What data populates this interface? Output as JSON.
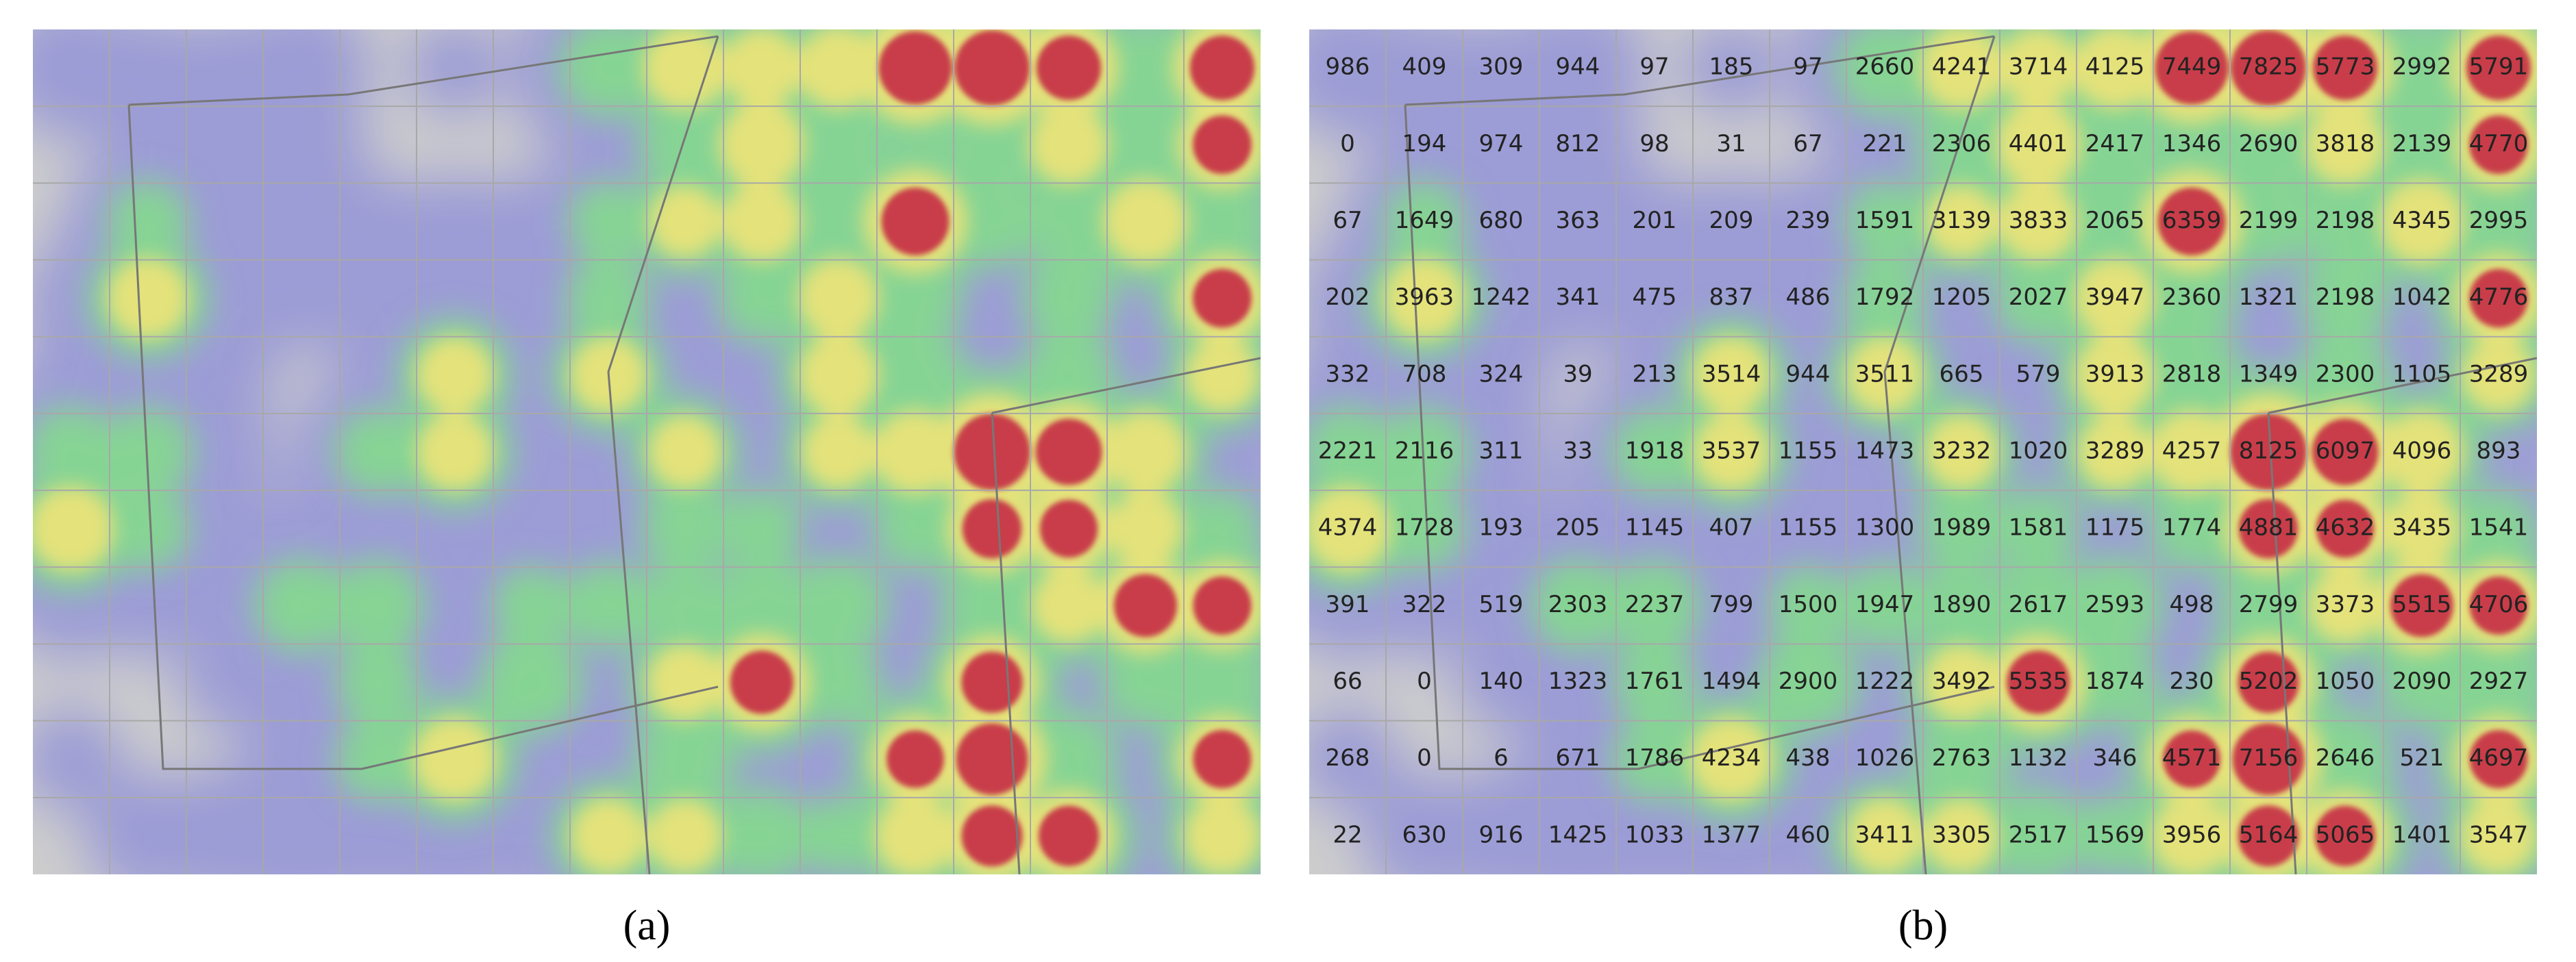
{
  "panels": [
    {
      "label": "(a)"
    },
    {
      "label": "(b)"
    }
  ],
  "grid": {
    "rows": [
      [
        986,
        409,
        309,
        944,
        97,
        185,
        97,
        2660,
        4241,
        3714,
        4125,
        7449,
        7825,
        5773,
        2992,
        5791
      ],
      [
        0,
        194,
        974,
        812,
        98,
        31,
        67,
        221,
        2306,
        4401,
        2417,
        1346,
        2690,
        3818,
        2139,
        4770
      ],
      [
        67,
        1649,
        680,
        363,
        201,
        209,
        239,
        1591,
        3139,
        3833,
        2065,
        6359,
        2199,
        2198,
        4345,
        2995
      ],
      [
        202,
        3963,
        1242,
        341,
        475,
        837,
        486,
        1792,
        1205,
        2027,
        3947,
        2360,
        1321,
        2198,
        1042,
        4776
      ],
      [
        332,
        708,
        324,
        39,
        213,
        3514,
        944,
        3511,
        665,
        579,
        3913,
        2818,
        1349,
        2300,
        1105,
        3289
      ],
      [
        2221,
        2116,
        311,
        33,
        1918,
        3537,
        1155,
        1473,
        3232,
        1020,
        3289,
        4257,
        8125,
        6097,
        4096,
        893
      ],
      [
        4374,
        1728,
        193,
        205,
        1145,
        407,
        1155,
        1300,
        1989,
        1581,
        1175,
        1774,
        4881,
        4632,
        3435,
        1541
      ],
      [
        391,
        322,
        519,
        2303,
        2237,
        799,
        1500,
        1947,
        1890,
        2617,
        2593,
        498,
        2799,
        3373,
        5515,
        4706
      ],
      [
        66,
        0,
        140,
        1323,
        1761,
        1494,
        2900,
        1222,
        3492,
        5535,
        1874,
        230,
        5202,
        1050,
        2090,
        2927
      ],
      [
        268,
        0,
        6,
        671,
        1786,
        4234,
        438,
        1026,
        2763,
        1132,
        346,
        4571,
        7156,
        2646,
        521,
        4697
      ],
      [
        22,
        630,
        916,
        1425,
        1033,
        1377,
        460,
        3411,
        3305,
        2517,
        1569,
        3956,
        5164,
        5065,
        1401,
        3547
      ]
    ]
  }
}
